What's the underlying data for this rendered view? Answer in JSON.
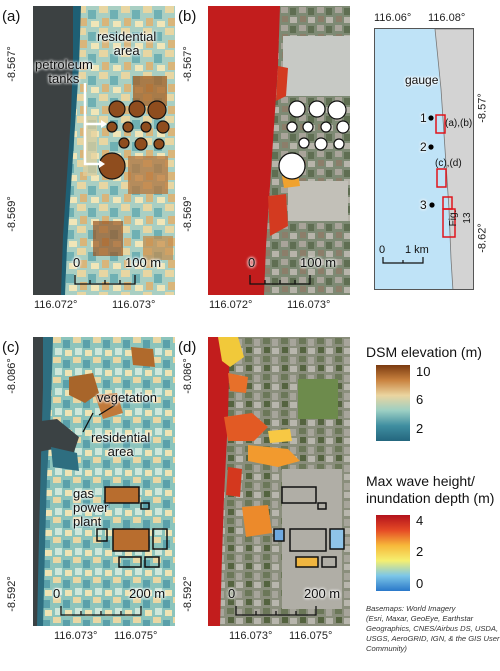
{
  "panels": {
    "a": {
      "label": "(a)",
      "x_ticks": [
        "116.072°",
        "116.073°"
      ],
      "y_ticks": [
        "-8.567°",
        "-8.569°"
      ],
      "scale_label": "100 m",
      "annotations": {
        "residential": "residential\narea",
        "petroleum": "petroleum\ntanks"
      }
    },
    "b": {
      "label": "(b)",
      "x_ticks": [
        "116.072°",
        "116.073°"
      ],
      "y_ticks": [
        "-8.567°",
        "-8.569°"
      ],
      "scale_label": "100 m"
    },
    "c": {
      "label": "(c)",
      "x_ticks": [
        "116.073°",
        "116.075°"
      ],
      "y_ticks": [
        "-8.086°",
        "-8.592°"
      ],
      "scale_label": "200 m",
      "annotations": {
        "vegetation": "vegetation",
        "residential": "residential\narea",
        "gas": "gas\npower\nplant"
      }
    },
    "d": {
      "label": "(d)",
      "x_ticks": [
        "116.073°",
        "116.075°"
      ],
      "y_ticks": [
        "-8.086°",
        "-8.592°"
      ],
      "scale_label": "200 m"
    }
  },
  "overview": {
    "x_ticks": [
      "116.06°",
      "116.08°"
    ],
    "y_ticks": [
      "-8.57°",
      "-8.62°"
    ],
    "gauge_label": "gauge",
    "gauges": [
      "1",
      "2",
      "3"
    ],
    "boxes": [
      "(a),(b)",
      "(c),(d)",
      "Fig. 13"
    ],
    "scale_zero": "0",
    "scale_label": "1 km",
    "colors": {
      "water": "#bfe3f7",
      "land": "#d3d3d3",
      "box": "#e0141c"
    }
  },
  "legend_dsm": {
    "title": "DSM elevation (m)",
    "ticks": [
      "10",
      "6",
      "2"
    ],
    "colors": [
      "#7a3a10",
      "#c9823f",
      "#ebd5a0",
      "#9ccfc3",
      "#3f8ea0",
      "#24667e"
    ]
  },
  "legend_wave": {
    "title": "Max wave height/\ninundation depth (m)",
    "ticks": [
      "4",
      "2",
      "0"
    ],
    "colors": [
      "#b3121c",
      "#e54a25",
      "#f7b83a",
      "#f5ef70",
      "#7cc6e8",
      "#2a78c9"
    ]
  },
  "credit": "Basemaps: World Imagery\n(Esri, Maxar, GeoEye, Earthstar\nGeographics, CNES/Airbus DS, USDA,\nUSGS, AeroGRID, IGN, & the GIS User\nCommunity)"
}
